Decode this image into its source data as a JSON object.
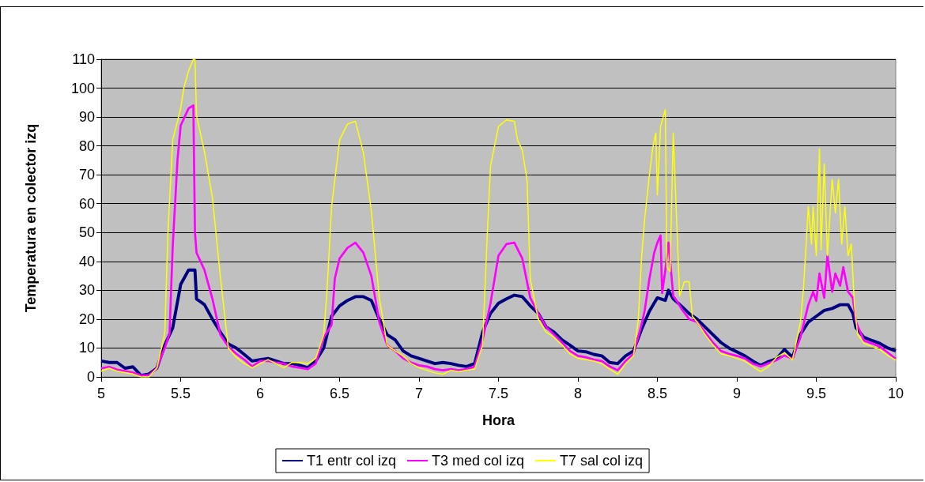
{
  "chart_data": {
    "type": "line",
    "xlabel": "Hora",
    "ylabel": "Temperatura en colector izq",
    "xlim": [
      5,
      10
    ],
    "xticks": [
      5,
      5.5,
      6,
      6.5,
      7,
      7.5,
      8,
      8.5,
      9,
      9.5,
      10
    ],
    "ylim": [
      0,
      110
    ],
    "yticks": [
      0,
      10,
      20,
      30,
      40,
      50,
      60,
      70,
      80,
      90,
      100,
      110
    ],
    "grid": "y",
    "legend": "bottom",
    "marker": "none",
    "line_style": "solid",
    "series": [
      {
        "name": "T1 entr col izq",
        "color": "#000080",
        "x": [
          5,
          5.05,
          5.1,
          5.15,
          5.2,
          5.25,
          5.3,
          5.35,
          5.4,
          5.45,
          5.5,
          5.55,
          5.59,
          5.6,
          5.65,
          5.7,
          5.75,
          5.8,
          5.85,
          5.9,
          5.95,
          6,
          6.05,
          6.1,
          6.15,
          6.2,
          6.25,
          6.3,
          6.35,
          6.4,
          6.45,
          6.5,
          6.55,
          6.6,
          6.65,
          6.7,
          6.75,
          6.8,
          6.85,
          6.9,
          6.95,
          7,
          7.05,
          7.1,
          7.15,
          7.2,
          7.25,
          7.3,
          7.35,
          7.4,
          7.45,
          7.5,
          7.55,
          7.6,
          7.65,
          7.7,
          7.75,
          7.8,
          7.85,
          7.9,
          7.95,
          8,
          8.05,
          8.1,
          8.15,
          8.2,
          8.25,
          8.3,
          8.35,
          8.4,
          8.45,
          8.5,
          8.55,
          8.57,
          8.6,
          8.65,
          8.7,
          8.75,
          8.8,
          8.85,
          8.9,
          8.95,
          9,
          9.05,
          9.1,
          9.15,
          9.2,
          9.25,
          9.3,
          9.35,
          9.4,
          9.45,
          9.5,
          9.55,
          9.6,
          9.65,
          9.7,
          9.73,
          9.75,
          9.8,
          9.85,
          9.9,
          9.95,
          10
        ],
        "values": [
          5.5,
          5,
          5,
          3,
          3.5,
          0.5,
          1,
          3,
          11,
          17,
          32,
          37,
          37,
          27,
          25,
          20,
          15.5,
          11.4,
          10,
          7.8,
          5.5,
          6,
          6.4,
          5.5,
          4.6,
          4.6,
          4,
          3.2,
          5.5,
          10,
          21,
          24.6,
          26.5,
          27.8,
          27.8,
          26.5,
          20,
          14.6,
          12.8,
          9,
          7.3,
          6.4,
          5.5,
          4.6,
          5,
          4.6,
          4,
          3.6,
          4.6,
          15.5,
          22,
          25.5,
          27,
          28.3,
          27.8,
          24.6,
          22,
          17.3,
          15.5,
          12.8,
          11,
          9,
          8.7,
          7.8,
          7.3,
          5,
          4.6,
          7.3,
          9,
          16.4,
          22.8,
          27.4,
          26.5,
          30,
          27,
          24.6,
          21.9,
          20,
          17.3,
          14.6,
          11.9,
          10,
          8.7,
          7.3,
          5.5,
          4,
          5.3,
          6.3,
          9.5,
          6.8,
          14.7,
          19,
          21,
          23,
          23.7,
          25,
          25,
          22,
          17,
          13.7,
          12.6,
          11.6,
          10,
          9
        ]
      },
      {
        "name": "T3 med col izq",
        "color": "#ff00ff",
        "x": [
          5,
          5.05,
          5.1,
          5.15,
          5.2,
          5.25,
          5.3,
          5.35,
          5.4,
          5.43,
          5.45,
          5.48,
          5.5,
          5.55,
          5.58,
          5.59,
          5.6,
          5.65,
          5.7,
          5.75,
          5.8,
          5.85,
          5.9,
          5.95,
          6,
          6.05,
          6.1,
          6.15,
          6.2,
          6.25,
          6.3,
          6.35,
          6.4,
          6.45,
          6.47,
          6.5,
          6.55,
          6.6,
          6.65,
          6.7,
          6.75,
          6.8,
          6.85,
          6.9,
          6.95,
          7,
          7.05,
          7.1,
          7.15,
          7.2,
          7.25,
          7.3,
          7.35,
          7.4,
          7.45,
          7.5,
          7.55,
          7.6,
          7.65,
          7.7,
          7.75,
          7.8,
          7.85,
          7.9,
          7.95,
          8,
          8.05,
          8.1,
          8.15,
          8.2,
          8.25,
          8.3,
          8.35,
          8.4,
          8.42,
          8.45,
          8.48,
          8.5,
          8.52,
          8.53,
          8.55,
          8.57,
          8.6,
          8.62,
          8.65,
          8.7,
          8.75,
          8.8,
          8.85,
          8.9,
          8.95,
          9,
          9.05,
          9.1,
          9.15,
          9.2,
          9.25,
          9.3,
          9.35,
          9.4,
          9.45,
          9.48,
          9.5,
          9.52,
          9.55,
          9.57,
          9.6,
          9.62,
          9.65,
          9.67,
          9.7,
          9.73,
          9.75,
          9.8,
          9.85,
          9.9,
          9.95,
          10
        ],
        "values": [
          3,
          3.5,
          2.5,
          2,
          1.5,
          0.5,
          0.5,
          3,
          10,
          15,
          45,
          75,
          87,
          93,
          94,
          50,
          43,
          37,
          27,
          14.6,
          10.5,
          8,
          6,
          3.6,
          5.5,
          5.5,
          5,
          4.6,
          3.6,
          3.2,
          2.7,
          4.6,
          13.7,
          18,
          34,
          41,
          44.7,
          46.5,
          43,
          35,
          19,
          11,
          9,
          6.4,
          5,
          4,
          3.6,
          2.7,
          2.3,
          2.7,
          2.3,
          2.7,
          3.6,
          12.8,
          25.5,
          42,
          46,
          46.5,
          41,
          27.4,
          22,
          17.3,
          14.6,
          11.9,
          9,
          7.3,
          6.8,
          6,
          5.5,
          3.6,
          2.3,
          5.5,
          8,
          18,
          23,
          34,
          43,
          46.5,
          49,
          29,
          37,
          46.5,
          28,
          26.5,
          23.7,
          20,
          19,
          15.5,
          11.9,
          9,
          8,
          7.3,
          6.4,
          4.6,
          3.6,
          4.7,
          5.8,
          7.4,
          6.3,
          13.7,
          25,
          29.5,
          26.3,
          35.8,
          27.4,
          42,
          29.5,
          35.8,
          31.6,
          38,
          29.5,
          27.4,
          19,
          12.6,
          11.6,
          10.5,
          8.4,
          6.3
        ]
      },
      {
        "name": "T7 sal col izq",
        "color": "#ffff00",
        "x": [
          5,
          5.05,
          5.1,
          5.15,
          5.2,
          5.25,
          5.3,
          5.35,
          5.4,
          5.42,
          5.45,
          5.5,
          5.52,
          5.55,
          5.58,
          5.59,
          5.6,
          5.65,
          5.7,
          5.75,
          5.8,
          5.85,
          5.9,
          5.95,
          6,
          6.05,
          6.1,
          6.15,
          6.2,
          6.25,
          6.3,
          6.35,
          6.4,
          6.42,
          6.45,
          6.5,
          6.55,
          6.6,
          6.65,
          6.7,
          6.75,
          6.8,
          6.85,
          6.9,
          6.95,
          7,
          7.05,
          7.1,
          7.15,
          7.2,
          7.25,
          7.3,
          7.35,
          7.4,
          7.43,
          7.45,
          7.5,
          7.55,
          7.6,
          7.62,
          7.65,
          7.68,
          7.7,
          7.75,
          7.8,
          7.85,
          7.9,
          7.95,
          8,
          8.05,
          8.1,
          8.15,
          8.2,
          8.25,
          8.3,
          8.35,
          8.38,
          8.4,
          8.42,
          8.45,
          8.47,
          8.49,
          8.5,
          8.52,
          8.55,
          8.56,
          8.58,
          8.6,
          8.62,
          8.64,
          8.67,
          8.7,
          8.72,
          8.75,
          8.8,
          8.85,
          8.9,
          8.95,
          9,
          9.05,
          9.1,
          9.15,
          9.2,
          9.25,
          9.3,
          9.35,
          9.4,
          9.42,
          9.45,
          9.47,
          9.48,
          9.5,
          9.52,
          9.53,
          9.55,
          9.57,
          9.6,
          9.62,
          9.64,
          9.66,
          9.68,
          9.7,
          9.72,
          9.74,
          9.76,
          9.8,
          9.85,
          9.9,
          9.95,
          10
        ],
        "values": [
          2,
          3,
          2,
          1.5,
          1,
          0,
          0,
          3,
          15,
          50,
          82,
          93,
          100,
          106,
          110,
          110,
          90.5,
          78,
          62,
          34.7,
          10,
          6.8,
          4.6,
          3.2,
          4.6,
          6,
          4.6,
          3.2,
          5,
          5,
          4.6,
          6.4,
          14.6,
          29,
          59,
          82,
          87.6,
          88.5,
          77.6,
          57.5,
          27.4,
          11,
          9,
          7.3,
          4.6,
          3.2,
          2.3,
          1.4,
          0.9,
          2.3,
          1.8,
          2.3,
          2.7,
          11,
          50,
          73,
          86.7,
          89,
          88.5,
          82,
          78.5,
          68,
          34,
          20,
          15.5,
          13.7,
          11,
          8,
          6.4,
          6,
          5.5,
          4.6,
          2.7,
          0.9,
          4.6,
          7.3,
          20,
          41,
          54.7,
          70,
          79,
          84.5,
          63,
          86.7,
          92.6,
          38,
          36.5,
          84.5,
          55.6,
          28,
          33,
          33,
          21,
          19,
          14.6,
          11,
          8,
          7.3,
          6.4,
          5.5,
          3.6,
          1.8,
          3.6,
          6.8,
          8.4,
          5.8,
          19,
          31,
          59,
          46,
          59,
          42,
          79,
          44,
          73.7,
          42,
          68.4,
          56.8,
          68.4,
          46,
          59,
          42,
          46,
          25,
          14.7,
          11.6,
          10.5,
          9.5,
          7.4,
          5.8
        ]
      }
    ]
  }
}
